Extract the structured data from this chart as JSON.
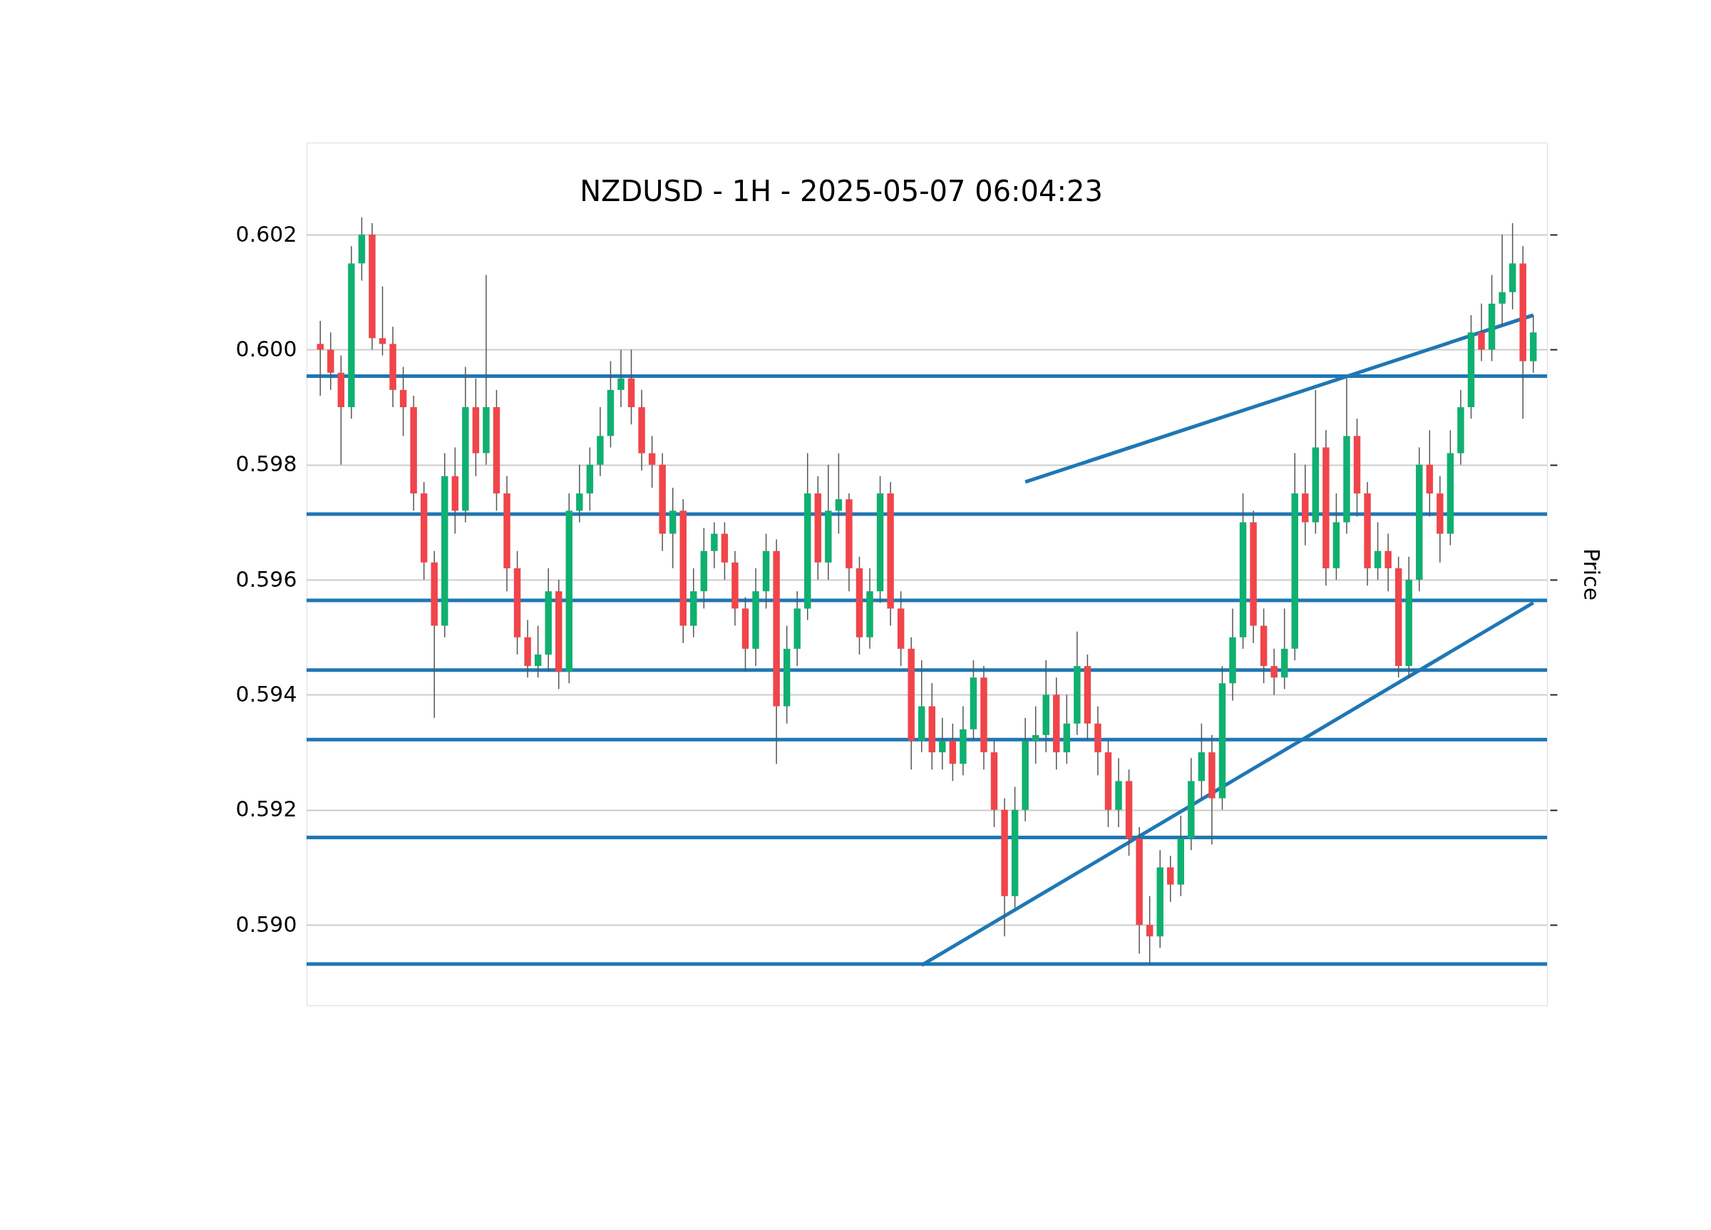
{
  "chart_data": {
    "type": "candlestick",
    "title": "NZDUSD - 1H - 2025-05-07 06:04:23",
    "ylabel": "Price",
    "categories": [
      null,
      null,
      null,
      null,
      null,
      null,
      null,
      null,
      null,
      null,
      null,
      null,
      null,
      null,
      null,
      null,
      null,
      null,
      null,
      null,
      null,
      null,
      null,
      null,
      null,
      null,
      null,
      null,
      null,
      null,
      null,
      null,
      null,
      null,
      null,
      null,
      null,
      null,
      null,
      null,
      null,
      null,
      null,
      null,
      null,
      null,
      null,
      null,
      null,
      null,
      null,
      null,
      null,
      null,
      null,
      null,
      null,
      null,
      null,
      null,
      null,
      null,
      null,
      null,
      null,
      null,
      null,
      null,
      null,
      null,
      null,
      null,
      null,
      null,
      null,
      null,
      null,
      null,
      null,
      null,
      null,
      null,
      null,
      null,
      null,
      null,
      null,
      null,
      null,
      null,
      null,
      null,
      null,
      null,
      null,
      null,
      null,
      null,
      null,
      null,
      null,
      null,
      null,
      null,
      null,
      null,
      null,
      null,
      null,
      null,
      null,
      null,
      null,
      null,
      null,
      null,
      null,
      null
    ],
    "ohlc": [
      [
        0.6001,
        0.6005,
        0.5992,
        0.6
      ],
      [
        0.6,
        0.6003,
        0.5993,
        0.5996
      ],
      [
        0.5996,
        0.5999,
        0.598,
        0.599
      ],
      [
        0.599,
        0.6018,
        0.5988,
        0.6015
      ],
      [
        0.6015,
        0.6023,
        0.6012,
        0.602
      ],
      [
        0.602,
        0.6022,
        0.6,
        0.6002
      ],
      [
        0.6002,
        0.6011,
        0.5999,
        0.6001
      ],
      [
        0.6001,
        0.6004,
        0.599,
        0.5993
      ],
      [
        0.5993,
        0.5997,
        0.5985,
        0.599
      ],
      [
        0.599,
        0.5992,
        0.5972,
        0.5975
      ],
      [
        0.5975,
        0.5977,
        0.596,
        0.5963
      ],
      [
        0.5963,
        0.5965,
        0.5936,
        0.5952
      ],
      [
        0.5952,
        0.5982,
        0.595,
        0.5978
      ],
      [
        0.5978,
        0.5983,
        0.5968,
        0.5972
      ],
      [
        0.5972,
        0.5997,
        0.597,
        0.599
      ],
      [
        0.599,
        0.5995,
        0.5978,
        0.5982
      ],
      [
        0.5982,
        0.6013,
        0.598,
        0.599
      ],
      [
        0.599,
        0.5993,
        0.5972,
        0.5975
      ],
      [
        0.5975,
        0.5978,
        0.5958,
        0.5962
      ],
      [
        0.5962,
        0.5965,
        0.5947,
        0.595
      ],
      [
        0.595,
        0.5953,
        0.5943,
        0.5945
      ],
      [
        0.5945,
        0.5952,
        0.5943,
        0.5947
      ],
      [
        0.5947,
        0.5962,
        0.5944,
        0.5958
      ],
      [
        0.5958,
        0.596,
        0.5941,
        0.5944
      ],
      [
        0.5944,
        0.5975,
        0.5942,
        0.5972
      ],
      [
        0.5972,
        0.598,
        0.597,
        0.5975
      ],
      [
        0.5975,
        0.5983,
        0.5972,
        0.598
      ],
      [
        0.598,
        0.599,
        0.5978,
        0.5985
      ],
      [
        0.5985,
        0.5998,
        0.5983,
        0.5993
      ],
      [
        0.5993,
        0.6,
        0.599,
        0.5995
      ],
      [
        0.5995,
        0.6,
        0.5987,
        0.599
      ],
      [
        0.599,
        0.5993,
        0.5979,
        0.5982
      ],
      [
        0.5982,
        0.5985,
        0.5976,
        0.598
      ],
      [
        0.598,
        0.5982,
        0.5965,
        0.5968
      ],
      [
        0.5968,
        0.5976,
        0.5962,
        0.5972
      ],
      [
        0.5972,
        0.5974,
        0.5949,
        0.5952
      ],
      [
        0.5952,
        0.5962,
        0.595,
        0.5958
      ],
      [
        0.5958,
        0.5969,
        0.5955,
        0.5965
      ],
      [
        0.5965,
        0.597,
        0.5962,
        0.5968
      ],
      [
        0.5968,
        0.597,
        0.596,
        0.5963
      ],
      [
        0.5963,
        0.5965,
        0.5952,
        0.5955
      ],
      [
        0.5955,
        0.5957,
        0.5944,
        0.5948
      ],
      [
        0.5948,
        0.5962,
        0.5945,
        0.5958
      ],
      [
        0.5958,
        0.5968,
        0.5955,
        0.5965
      ],
      [
        0.5965,
        0.5967,
        0.5928,
        0.5938
      ],
      [
        0.5938,
        0.5952,
        0.5935,
        0.5948
      ],
      [
        0.5948,
        0.5958,
        0.5945,
        0.5955
      ],
      [
        0.5955,
        0.5982,
        0.5953,
        0.5975
      ],
      [
        0.5975,
        0.5978,
        0.596,
        0.5963
      ],
      [
        0.5963,
        0.598,
        0.596,
        0.5972
      ],
      [
        0.5972,
        0.5982,
        0.5968,
        0.5974
      ],
      [
        0.5974,
        0.5975,
        0.5958,
        0.5962
      ],
      [
        0.5962,
        0.5964,
        0.5947,
        0.595
      ],
      [
        0.595,
        0.5962,
        0.5948,
        0.5958
      ],
      [
        0.5958,
        0.5978,
        0.5956,
        0.5975
      ],
      [
        0.5975,
        0.5977,
        0.5952,
        0.5955
      ],
      [
        0.5955,
        0.5958,
        0.5945,
        0.5948
      ],
      [
        0.5948,
        0.595,
        0.5927,
        0.5932
      ],
      [
        0.5932,
        0.5946,
        0.593,
        0.5938
      ],
      [
        0.5938,
        0.5942,
        0.5927,
        0.593
      ],
      [
        0.593,
        0.5936,
        0.5927,
        0.5932
      ],
      [
        0.5932,
        0.5935,
        0.5925,
        0.5928
      ],
      [
        0.5928,
        0.5938,
        0.5926,
        0.5934
      ],
      [
        0.5934,
        0.5946,
        0.5932,
        0.5943
      ],
      [
        0.5943,
        0.5945,
        0.5927,
        0.593
      ],
      [
        0.593,
        0.5932,
        0.5917,
        0.592
      ],
      [
        0.592,
        0.5922,
        0.5898,
        0.5905
      ],
      [
        0.5905,
        0.5924,
        0.5903,
        0.592
      ],
      [
        0.592,
        0.5936,
        0.5918,
        0.5932
      ],
      [
        0.5932,
        0.5938,
        0.5928,
        0.5933
      ],
      [
        0.5933,
        0.5946,
        0.593,
        0.594
      ],
      [
        0.594,
        0.5943,
        0.5927,
        0.593
      ],
      [
        0.593,
        0.594,
        0.5928,
        0.5935
      ],
      [
        0.5935,
        0.5951,
        0.5933,
        0.5945
      ],
      [
        0.5945,
        0.5947,
        0.5932,
        0.5935
      ],
      [
        0.5935,
        0.5938,
        0.5926,
        0.593
      ],
      [
        0.593,
        0.5932,
        0.5917,
        0.592
      ],
      [
        0.592,
        0.5929,
        0.5917,
        0.5925
      ],
      [
        0.5925,
        0.5927,
        0.5912,
        0.5915
      ],
      [
        0.5915,
        0.5917,
        0.5895,
        0.59
      ],
      [
        0.59,
        0.5905,
        0.5893,
        0.5898
      ],
      [
        0.5898,
        0.5913,
        0.5896,
        0.591
      ],
      [
        0.591,
        0.5912,
        0.5904,
        0.5907
      ],
      [
        0.5907,
        0.5919,
        0.5905,
        0.5915
      ],
      [
        0.5915,
        0.5929,
        0.5913,
        0.5925
      ],
      [
        0.5925,
        0.5935,
        0.5922,
        0.593
      ],
      [
        0.593,
        0.5933,
        0.5914,
        0.5922
      ],
      [
        0.5922,
        0.5945,
        0.592,
        0.5942
      ],
      [
        0.5942,
        0.5955,
        0.5939,
        0.595
      ],
      [
        0.595,
        0.5975,
        0.5948,
        0.597
      ],
      [
        0.597,
        0.5972,
        0.5949,
        0.5952
      ],
      [
        0.5952,
        0.5955,
        0.5942,
        0.5945
      ],
      [
        0.5945,
        0.5948,
        0.594,
        0.5943
      ],
      [
        0.5943,
        0.5955,
        0.5941,
        0.5948
      ],
      [
        0.5948,
        0.5982,
        0.5946,
        0.5975
      ],
      [
        0.5975,
        0.598,
        0.5966,
        0.597
      ],
      [
        0.597,
        0.5993,
        0.5968,
        0.5983
      ],
      [
        0.5983,
        0.5986,
        0.5959,
        0.5962
      ],
      [
        0.5962,
        0.5975,
        0.596,
        0.597
      ],
      [
        0.597,
        0.5995,
        0.5968,
        0.5985
      ],
      [
        0.5985,
        0.5988,
        0.5971,
        0.5975
      ],
      [
        0.5975,
        0.5977,
        0.5959,
        0.5962
      ],
      [
        0.5962,
        0.597,
        0.596,
        0.5965
      ],
      [
        0.5965,
        0.5968,
        0.5958,
        0.5962
      ],
      [
        0.5962,
        0.5964,
        0.5943,
        0.5945
      ],
      [
        0.5945,
        0.5964,
        0.5943,
        0.596
      ],
      [
        0.596,
        0.5983,
        0.5958,
        0.598
      ],
      [
        0.598,
        0.5986,
        0.5971,
        0.5975
      ],
      [
        0.5975,
        0.5978,
        0.5963,
        0.5968
      ],
      [
        0.5968,
        0.5986,
        0.5966,
        0.5982
      ],
      [
        0.5982,
        0.5993,
        0.598,
        0.599
      ],
      [
        0.599,
        0.6006,
        0.5988,
        0.6003
      ],
      [
        0.6003,
        0.6008,
        0.5998,
        0.6
      ],
      [
        0.6,
        0.6013,
        0.5998,
        0.6008
      ],
      [
        0.6008,
        0.602,
        0.6004,
        0.601
      ],
      [
        0.601,
        0.6022,
        0.6007,
        0.6015
      ],
      [
        0.6015,
        0.6018,
        0.5988,
        0.5998
      ],
      [
        0.5998,
        0.6006,
        0.5996,
        0.6003
      ]
    ],
    "series": [
      {
        "type": "line",
        "color": "#1f77b4",
        "values": [
          null,
          null,
          null,
          null,
          null,
          null,
          null,
          null,
          null,
          null,
          null,
          null,
          null,
          null,
          null,
          null,
          null,
          null,
          null,
          null,
          null,
          null,
          null,
          null,
          null,
          null,
          null,
          null,
          null,
          null,
          null,
          null,
          null,
          null,
          null,
          null,
          null,
          null,
          null,
          null,
          null,
          null,
          null,
          null,
          null,
          null,
          null,
          null,
          null,
          null,
          null,
          null,
          null,
          null,
          null,
          null,
          null,
          null,
          null,
          null,
          null,
          null,
          null,
          null,
          null,
          null,
          null,
          null,
          0.5977,
          null,
          null,
          null,
          null,
          null,
          null,
          null,
          null,
          null,
          null,
          null,
          null,
          null,
          null,
          null,
          null,
          null,
          null,
          null,
          null,
          null,
          null,
          null,
          null,
          null,
          null,
          null,
          null,
          null,
          null,
          null,
          null,
          null,
          null,
          null,
          null,
          null,
          null,
          null,
          null,
          null,
          null,
          null,
          null,
          null,
          null,
          null,
          null,
          0.6006
        ]
      },
      {
        "type": "line",
        "color": "#1f77b4",
        "values": [
          null,
          null,
          null,
          null,
          null,
          null,
          null,
          null,
          null,
          null,
          null,
          null,
          null,
          null,
          null,
          null,
          null,
          null,
          null,
          null,
          null,
          null,
          null,
          null,
          null,
          null,
          null,
          null,
          null,
          null,
          null,
          null,
          null,
          null,
          null,
          null,
          null,
          null,
          null,
          null,
          null,
          null,
          null,
          null,
          null,
          null,
          null,
          null,
          null,
          null,
          null,
          null,
          null,
          null,
          null,
          null,
          null,
          null,
          0.5893,
          null,
          null,
          null,
          null,
          null,
          null,
          null,
          null,
          null,
          null,
          null,
          null,
          null,
          null,
          null,
          null,
          null,
          null,
          null,
          null,
          null,
          null,
          null,
          null,
          null,
          null,
          null,
          null,
          null,
          null,
          null,
          null,
          null,
          null,
          null,
          null,
          null,
          null,
          null,
          null,
          null,
          null,
          null,
          null,
          null,
          null,
          null,
          null,
          null,
          null,
          null,
          null,
          null,
          null,
          null,
          null,
          null,
          null,
          0.5956
        ]
      }
    ],
    "ref_lines": [
      {
        "axis": "y",
        "value": 0.59954,
        "color": "#1f77b4"
      },
      {
        "axis": "y",
        "value": 0.59714,
        "color": "#1f77b4"
      },
      {
        "axis": "y",
        "value": 0.59564,
        "color": "#1f77b4"
      },
      {
        "axis": "y",
        "value": 0.59443,
        "color": "#1f77b4"
      },
      {
        "axis": "y",
        "value": 0.59322,
        "color": "#1f77b4"
      },
      {
        "axis": "y",
        "value": 0.59152,
        "color": "#1f77b4"
      },
      {
        "axis": "y",
        "value": 0.58932,
        "color": "#1f77b4"
      }
    ],
    "ylim": [
      0.5886,
      0.6036
    ],
    "yticks": [
      {
        "value": 0.59,
        "label": "0.590"
      },
      {
        "value": 0.592,
        "label": "0.592"
      },
      {
        "value": 0.594,
        "label": "0.594"
      },
      {
        "value": 0.596,
        "label": "0.596"
      },
      {
        "value": 0.598,
        "label": "0.598"
      },
      {
        "value": 0.6,
        "label": "0.600"
      },
      {
        "value": 0.602,
        "label": "0.602"
      }
    ],
    "grid": "y",
    "tick_labels": "y"
  }
}
